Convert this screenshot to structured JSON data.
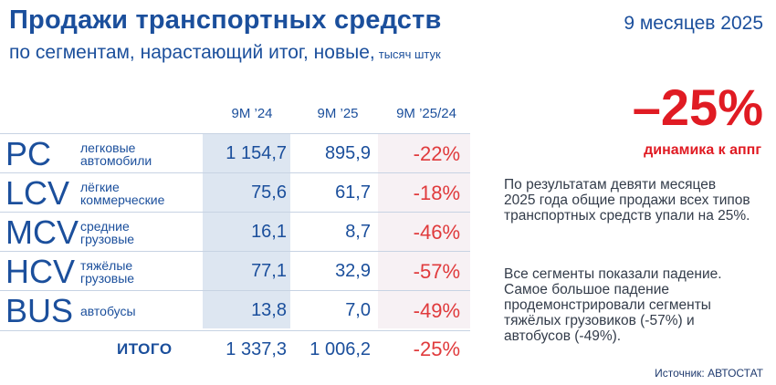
{
  "header": {
    "title": "Продажи транспортных средств",
    "subtitle": "по сегментам, нарастающий итог, новые,",
    "units": "тысяч штук",
    "period": "9 месяцев 2025"
  },
  "table": {
    "columns": [
      "9M ’24",
      "9M ’25",
      "9M ’25/24"
    ],
    "rows": [
      {
        "code": "PC",
        "segment": "легковые\nавтомобили",
        "v24": "1 154,7",
        "v25": "895,9",
        "pct": "-22%"
      },
      {
        "code": "LCV",
        "segment": "лёгкие\nкоммерческие",
        "v24": "75,6",
        "v25": "61,7",
        "pct": "-18%"
      },
      {
        "code": "MCV",
        "segment": "средние\nгрузовые",
        "v24": "16,1",
        "v25": "8,7",
        "pct": "-46%"
      },
      {
        "code": "HCV",
        "segment": "тяжёлые\nгрузовые",
        "v24": "77,1",
        "v25": "32,9",
        "pct": "-57%"
      },
      {
        "code": "BUS",
        "segment": "автобусы",
        "v24": "13,8",
        "v25": "7,0",
        "pct": "-49%"
      }
    ],
    "total": {
      "label": "ИТОГО",
      "v24": "1 337,3",
      "v25": "1 006,2",
      "pct": "-25%"
    }
  },
  "highlight": {
    "value": "–25%",
    "label": "динамика к аппг"
  },
  "commentary": {
    "paragraph1": "По результатам девяти месяцев 2025 года общие продажи всех типов транспортных средств упали на 25%.",
    "paragraph2": "Все сегменты показали падение. Самое большое падение продемонстрировали сегменты тяжёлых грузовиков (-57%) и автобусов (-49%)."
  },
  "source": "Источник: АВТОСТАТ",
  "colors": {
    "brand_blue": "#1b4f9c",
    "negative_red": "#e03a3c",
    "column_shade": "#dde6f1"
  }
}
